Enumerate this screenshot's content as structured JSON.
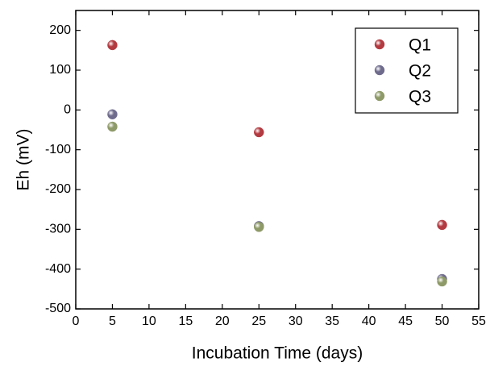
{
  "chart_data": {
    "type": "scatter",
    "x_label": "Incubation Time (days)",
    "y_label": "Eh (mV)",
    "series": [
      {
        "name": "Q1",
        "color": "#b23a40",
        "x": [
          5,
          25,
          50
        ],
        "values": [
          163,
          -56,
          -289
        ]
      },
      {
        "name": "Q2",
        "color": "#6f6b8c",
        "x": [
          5,
          25,
          50
        ],
        "values": [
          -11,
          -292,
          -425
        ]
      },
      {
        "name": "Q3",
        "color": "#8e9a68",
        "x": [
          5,
          25,
          50
        ],
        "values": [
          -42,
          -294,
          -431
        ]
      }
    ],
    "xlim": [
      0,
      55
    ],
    "xticks": [
      0,
      5,
      10,
      15,
      20,
      25,
      30,
      35,
      40,
      45,
      50,
      55
    ],
    "ylim": [
      -500,
      250
    ],
    "yticks": [
      -500,
      -400,
      -300,
      -200,
      -100,
      0,
      100,
      200
    ],
    "legend": "upper right",
    "grid": false
  }
}
